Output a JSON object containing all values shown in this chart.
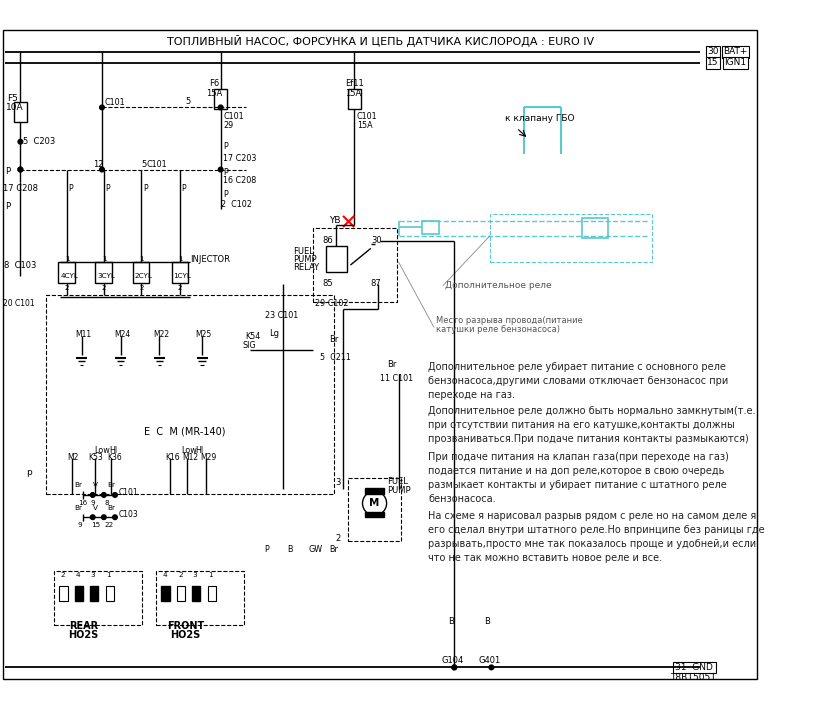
{
  "title": "ТОПЛИВНЫЙ НАСОС, ФОРСУНКА И ЦЕПЬ ДАТЧИКА КИСЛОРОДА : EURO IV",
  "title_fontsize": 8.0,
  "bg_color": "#ffffff",
  "line_color": "#000000",
  "cyan_color": "#5bc8d0",
  "gray_color": "#888888",
  "fig_width": 8.19,
  "fig_height": 7.09,
  "para1": "Дополнительное реле убирает питание с основного реле\nбензонасоса,другими словами отключает бензонасос при\nпереходе на газ.",
  "para2": "Дополнительное реле должно быть нормально замкнутым(т.е.\nпри отсутствии питания на его катушке,контакты должны\nпрозваниваться.При подаче питания контакты размыкаются)",
  "para3": "При подаче питания на клапан газа(при переходе на газ)\nподается питание и на доп реле,которое в свою очередь\nразмыкает контакты и убирает питание с штатного реле\nбензонасоса.",
  "para4": "На схеме я нарисовал разрыв рядом с реле но на самом деле я\nего сделал внутри штатного реле.Но впринципе без раницы где\nразрывать,просто мне так показалось проще и удобней,и если\nчто не так можно вставить новое реле и все.",
  "label_bat": "BAT+",
  "label_ign": "IGN1",
  "label_gnd": "GND",
  "label_ref": "T8B15051"
}
